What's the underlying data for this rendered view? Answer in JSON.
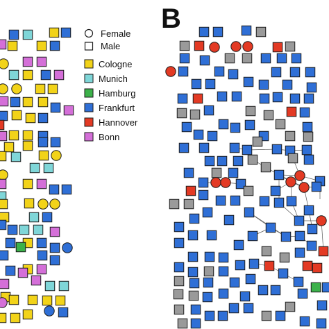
{
  "panel_b": {
    "letter": "B"
  },
  "legend": {
    "shapes": [
      {
        "label": "Female",
        "shape": "circle"
      },
      {
        "label": "Male",
        "shape": "square"
      }
    ],
    "cities": [
      {
        "label": "Cologne",
        "color": "#f2d319"
      },
      {
        "label": "Munich",
        "color": "#7fd6d8"
      },
      {
        "label": "Hamburg",
        "color": "#3cb14a"
      },
      {
        "label": "Frankfurt",
        "color": "#2f6fd6"
      },
      {
        "label": "Hannover",
        "color": "#e33a24"
      },
      {
        "label": "Bonn",
        "color": "#d46fd8"
      }
    ]
  },
  "colors": {
    "unaffiliated": "#9a9a9a",
    "outline": "#1a1a1a",
    "edge": "#555555"
  }
}
